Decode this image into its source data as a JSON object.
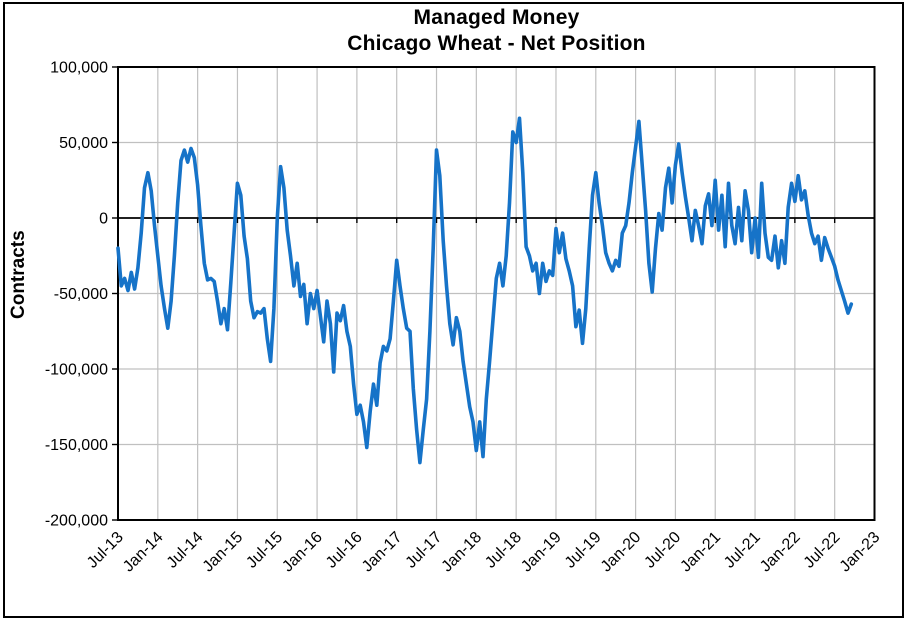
{
  "title": {
    "line1": "Managed Money",
    "line2": "Chicago Wheat - Net Position"
  },
  "y_axis": {
    "title": "Contracts",
    "min": -200000,
    "max": 100000,
    "ticks": [
      {
        "value": 100000,
        "label": "100,000"
      },
      {
        "value": 50000,
        "label": "50,000"
      },
      {
        "value": 0,
        "label": "0"
      },
      {
        "value": -50000,
        "label": "-50,000"
      },
      {
        "value": -100000,
        "label": "-100,000"
      },
      {
        "value": -150000,
        "label": "-150,000"
      },
      {
        "value": -200000,
        "label": "-200,000"
      }
    ]
  },
  "x_axis": {
    "tick_labels": [
      "Jul-13",
      "Jan-14",
      "Jul-14",
      "Jan-15",
      "Jul-15",
      "Jan-16",
      "Jul-16",
      "Jan-17",
      "Jul-17",
      "Jan-18",
      "Jul-18",
      "Jan-19",
      "Jul-19",
      "Jan-20",
      "Jul-20",
      "Jan-21",
      "Jul-21",
      "Jan-22",
      "Jul-22",
      "Jan-23"
    ],
    "months_per_tick": 6,
    "total_months": 114
  },
  "chart_data": {
    "type": "line",
    "series_name": "Managed Money Net Position - Chicago Wheat",
    "color": "#1673C8",
    "grid_color": "#C0C0C0",
    "axis_color": "#000000",
    "x_start_label": "Jul-13",
    "x_step_months": 0.5,
    "units": "contracts",
    "ylim": [
      -200000,
      100000
    ],
    "grid": true,
    "legend": "none",
    "values": [
      -20000,
      -45000,
      -40000,
      -48000,
      -36000,
      -47000,
      -33000,
      -10000,
      20000,
      30000,
      18000,
      -5000,
      -25000,
      -45000,
      -60000,
      -73000,
      -55000,
      -25000,
      10000,
      38000,
      45000,
      37000,
      46000,
      40000,
      22000,
      -5000,
      -30000,
      -41000,
      -40000,
      -42000,
      -55000,
      -70000,
      -60000,
      -74000,
      -43000,
      -10000,
      23000,
      15000,
      -12000,
      -27000,
      -55000,
      -66000,
      -62000,
      -63000,
      -60000,
      -80000,
      -95000,
      -60000,
      0,
      34000,
      20000,
      -8000,
      -25000,
      -45000,
      -30000,
      -52000,
      -44000,
      -70000,
      -50000,
      -60000,
      -48000,
      -65000,
      -82000,
      -55000,
      -70000,
      -102000,
      -63000,
      -68000,
      -58000,
      -75000,
      -85000,
      -110000,
      -130000,
      -124000,
      -135000,
      -152000,
      -128000,
      -110000,
      -124000,
      -96000,
      -85000,
      -88000,
      -80000,
      -55000,
      -28000,
      -45000,
      -60000,
      -73000,
      -75000,
      -113000,
      -140000,
      -162000,
      -140000,
      -120000,
      -75000,
      -20000,
      45000,
      28000,
      -15000,
      -45000,
      -70000,
      -84000,
      -66000,
      -75000,
      -95000,
      -110000,
      -125000,
      -135000,
      -154000,
      -135000,
      -158000,
      -120000,
      -95000,
      -68000,
      -40000,
      -30000,
      -45000,
      -25000,
      10000,
      57000,
      50000,
      66000,
      30000,
      -19000,
      -25000,
      -35000,
      -30000,
      -50000,
      -30000,
      -42000,
      -35000,
      -38000,
      -7000,
      -23000,
      -10000,
      -27000,
      -35000,
      -45000,
      -72000,
      -61000,
      -83000,
      -60000,
      -20000,
      15000,
      30000,
      10000,
      -5000,
      -23000,
      -30000,
      -35000,
      -28000,
      -32000,
      -10000,
      -5000,
      10000,
      30000,
      47000,
      64000,
      35000,
      5000,
      -30000,
      -49000,
      -20000,
      3000,
      -8000,
      20000,
      33000,
      10000,
      35000,
      49000,
      30000,
      14000,
      0,
      -15000,
      5000,
      -5000,
      -17000,
      8000,
      16000,
      -5000,
      25000,
      -8000,
      15000,
      -19000,
      23000,
      -5000,
      -17000,
      7000,
      -15000,
      18000,
      5000,
      -23000,
      0,
      -26000,
      23000,
      -10000,
      -26000,
      -28000,
      -12000,
      -33000,
      -15000,
      -30000,
      7000,
      23000,
      11000,
      28000,
      12000,
      18000,
      2000,
      -10000,
      -17000,
      -12000,
      -28000,
      -13000,
      -20000,
      -26000,
      -32000,
      -41000,
      -48000,
      -55000,
      -63000,
      -57000
    ]
  }
}
